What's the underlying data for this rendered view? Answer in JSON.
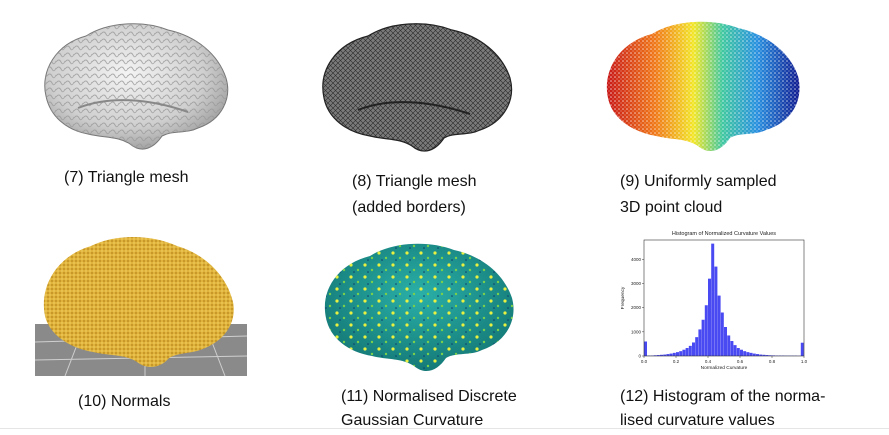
{
  "figures": [
    {
      "id": "7",
      "caption_lines": [
        "(7) Triangle mesh"
      ]
    },
    {
      "id": "8",
      "caption_lines": [
        "(8) Triangle mesh",
        "(added borders)"
      ]
    },
    {
      "id": "9",
      "caption_lines": [
        "(9) Uniformly sampled",
        "3D point cloud"
      ]
    },
    {
      "id": "10",
      "caption_lines": [
        "(10) Normals"
      ]
    },
    {
      "id": "11",
      "caption_lines": [
        "(11) Normalised Discrete",
        "Gaussian Curvature"
      ]
    },
    {
      "id": "12",
      "caption_lines": [
        "(12) Histogram of the norma-",
        "lised curvature values"
      ]
    }
  ],
  "colors": {
    "mesh_light": "#d9d9d9",
    "mesh_dark": "#5a5a5a",
    "normals_gold": "#e0b43c",
    "curvature_teal": "#1e9a9a",
    "histogram_bar": "#4a4af2",
    "floor_grey": "#8a8a8a"
  },
  "chart_data": {
    "type": "bar",
    "title": "Histogram of Normalized Curvature Values",
    "xlabel": "Normalized Curvature",
    "ylabel": "Frequency",
    "xlim": [
      0.0,
      1.0
    ],
    "ylim": [
      0,
      4800
    ],
    "x_ticks": [
      "0.0",
      "0.2",
      "0.4",
      "0.6",
      "0.8",
      "1.0"
    ],
    "y_ticks": [
      "0",
      "1000",
      "2000",
      "3000",
      "4000"
    ],
    "x_tick_values": [
      0.0,
      0.2,
      0.4,
      0.6,
      0.8,
      1.0
    ],
    "y_tick_values": [
      0,
      1000,
      2000,
      3000,
      4000
    ],
    "bin_width": 0.02,
    "bin_starts": [
      0.0,
      0.02,
      0.04,
      0.06,
      0.08,
      0.1,
      0.12,
      0.14,
      0.16,
      0.18,
      0.2,
      0.22,
      0.24,
      0.26,
      0.28,
      0.3,
      0.32,
      0.34,
      0.36,
      0.38,
      0.4,
      0.42,
      0.44,
      0.46,
      0.48,
      0.5,
      0.52,
      0.54,
      0.56,
      0.58,
      0.6,
      0.62,
      0.64,
      0.66,
      0.68,
      0.7,
      0.72,
      0.74,
      0.76,
      0.78,
      0.8,
      0.82,
      0.84,
      0.86,
      0.88,
      0.9,
      0.92,
      0.94,
      0.96,
      0.98
    ],
    "values": [
      600,
      20,
      20,
      30,
      40,
      50,
      60,
      80,
      100,
      130,
      160,
      200,
      260,
      330,
      420,
      560,
      780,
      1100,
      1500,
      2100,
      3200,
      4650,
      3700,
      2500,
      1800,
      1200,
      850,
      620,
      450,
      330,
      260,
      200,
      160,
      130,
      100,
      80,
      60,
      50,
      40,
      30,
      25,
      20,
      20,
      20,
      15,
      15,
      15,
      15,
      10,
      550
    ]
  }
}
